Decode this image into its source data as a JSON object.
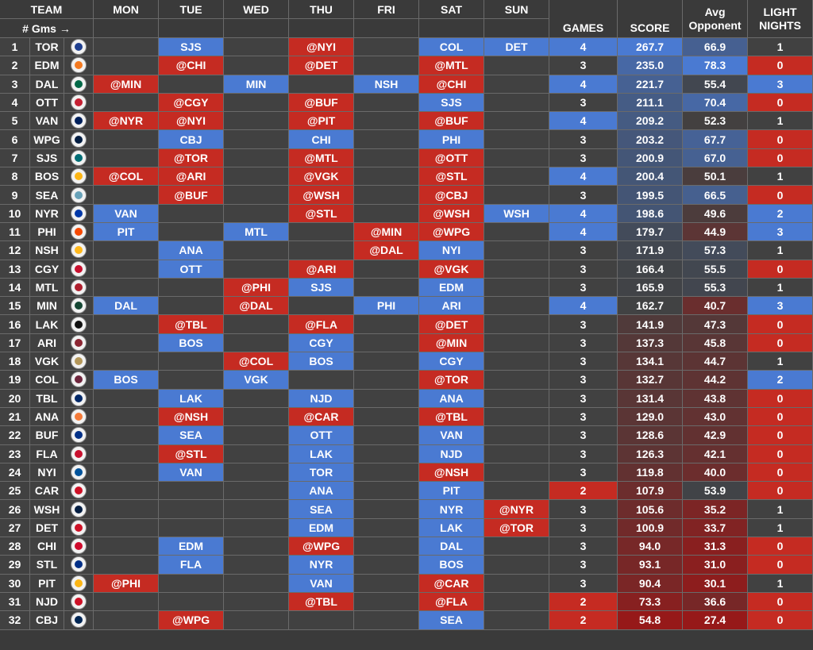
{
  "headers": {
    "team": "TEAM",
    "gms": "# Gms →",
    "days": [
      "MON",
      "TUE",
      "WED",
      "THU",
      "FRI",
      "SAT",
      "SUN"
    ],
    "games": "GAMES",
    "score": "SCORE",
    "avg_1": "Avg",
    "avg_2": "Opponent",
    "light_1": "LIGHT",
    "light_2": "NIGHTS"
  },
  "colors": {
    "blue": "#4a7ad2",
    "red": "#c52b22",
    "dark": "#414141"
  },
  "rows": [
    {
      "rank": "1",
      "team": "TOR",
      "days": [
        "",
        "SJS",
        "",
        "@NYI",
        "",
        "COL",
        "DET"
      ],
      "games": "4",
      "score": "267.7",
      "avg": "66.9",
      "light": "1"
    },
    {
      "rank": "2",
      "team": "EDM",
      "days": [
        "",
        "@CHI",
        "",
        "@DET",
        "",
        "@MTL",
        ""
      ],
      "games": "3",
      "score": "235.0",
      "avg": "78.3",
      "light": "0"
    },
    {
      "rank": "3",
      "team": "DAL",
      "days": [
        "@MIN",
        "",
        "MIN",
        "",
        "NSH",
        "@CHI",
        ""
      ],
      "games": "4",
      "score": "221.7",
      "avg": "55.4",
      "light": "3"
    },
    {
      "rank": "4",
      "team": "OTT",
      "days": [
        "",
        "@CGY",
        "",
        "@BUF",
        "",
        "SJS",
        ""
      ],
      "games": "3",
      "score": "211.1",
      "avg": "70.4",
      "light": "0"
    },
    {
      "rank": "5",
      "team": "VAN",
      "days": [
        "@NYR",
        "@NYI",
        "",
        "@PIT",
        "",
        "@BUF",
        ""
      ],
      "games": "4",
      "score": "209.2",
      "avg": "52.3",
      "light": "1"
    },
    {
      "rank": "6",
      "team": "WPG",
      "days": [
        "",
        "CBJ",
        "",
        "CHI",
        "",
        "PHI",
        ""
      ],
      "games": "3",
      "score": "203.2",
      "avg": "67.7",
      "light": "0"
    },
    {
      "rank": "7",
      "team": "SJS",
      "days": [
        "",
        "@TOR",
        "",
        "@MTL",
        "",
        "@OTT",
        ""
      ],
      "games": "3",
      "score": "200.9",
      "avg": "67.0",
      "light": "0"
    },
    {
      "rank": "8",
      "team": "BOS",
      "days": [
        "@COL",
        "@ARI",
        "",
        "@VGK",
        "",
        "@STL",
        ""
      ],
      "games": "4",
      "score": "200.4",
      "avg": "50.1",
      "light": "1"
    },
    {
      "rank": "9",
      "team": "SEA",
      "days": [
        "",
        "@BUF",
        "",
        "@WSH",
        "",
        "@CBJ",
        ""
      ],
      "games": "3",
      "score": "199.5",
      "avg": "66.5",
      "light": "0"
    },
    {
      "rank": "10",
      "team": "NYR",
      "days": [
        "VAN",
        "",
        "",
        "@STL",
        "",
        "@WSH",
        "WSH"
      ],
      "games": "4",
      "score": "198.6",
      "avg": "49.6",
      "light": "2"
    },
    {
      "rank": "11",
      "team": "PHI",
      "days": [
        "PIT",
        "",
        "MTL",
        "",
        "@MIN",
        "@WPG",
        ""
      ],
      "games": "4",
      "score": "179.7",
      "avg": "44.9",
      "light": "3"
    },
    {
      "rank": "12",
      "team": "NSH",
      "days": [
        "",
        "ANA",
        "",
        "",
        "@DAL",
        "NYI",
        ""
      ],
      "games": "3",
      "score": "171.9",
      "avg": "57.3",
      "light": "1"
    },
    {
      "rank": "13",
      "team": "CGY",
      "days": [
        "",
        "OTT",
        "",
        "@ARI",
        "",
        "@VGK",
        ""
      ],
      "games": "3",
      "score": "166.4",
      "avg": "55.5",
      "light": "0"
    },
    {
      "rank": "14",
      "team": "MTL",
      "days": [
        "",
        "",
        "@PHI",
        "SJS",
        "",
        "EDM",
        ""
      ],
      "games": "3",
      "score": "165.9",
      "avg": "55.3",
      "light": "1"
    },
    {
      "rank": "15",
      "team": "MIN",
      "days": [
        "DAL",
        "",
        "@DAL",
        "",
        "PHI",
        "ARI",
        ""
      ],
      "games": "4",
      "score": "162.7",
      "avg": "40.7",
      "light": "3"
    },
    {
      "rank": "16",
      "team": "LAK",
      "days": [
        "",
        "@TBL",
        "",
        "@FLA",
        "",
        "@DET",
        ""
      ],
      "games": "3",
      "score": "141.9",
      "avg": "47.3",
      "light": "0"
    },
    {
      "rank": "17",
      "team": "ARI",
      "days": [
        "",
        "BOS",
        "",
        "CGY",
        "",
        "@MIN",
        ""
      ],
      "games": "3",
      "score": "137.3",
      "avg": "45.8",
      "light": "0"
    },
    {
      "rank": "18",
      "team": "VGK",
      "days": [
        "",
        "",
        "@COL",
        "BOS",
        "",
        "CGY",
        ""
      ],
      "games": "3",
      "score": "134.1",
      "avg": "44.7",
      "light": "1"
    },
    {
      "rank": "19",
      "team": "COL",
      "days": [
        "BOS",
        "",
        "VGK",
        "",
        "",
        "@TOR",
        ""
      ],
      "games": "3",
      "score": "132.7",
      "avg": "44.2",
      "light": "2"
    },
    {
      "rank": "20",
      "team": "TBL",
      "days": [
        "",
        "LAK",
        "",
        "NJD",
        "",
        "ANA",
        ""
      ],
      "games": "3",
      "score": "131.4",
      "avg": "43.8",
      "light": "0"
    },
    {
      "rank": "21",
      "team": "ANA",
      "days": [
        "",
        "@NSH",
        "",
        "@CAR",
        "",
        "@TBL",
        ""
      ],
      "games": "3",
      "score": "129.0",
      "avg": "43.0",
      "light": "0"
    },
    {
      "rank": "22",
      "team": "BUF",
      "days": [
        "",
        "SEA",
        "",
        "OTT",
        "",
        "VAN",
        ""
      ],
      "games": "3",
      "score": "128.6",
      "avg": "42.9",
      "light": "0"
    },
    {
      "rank": "23",
      "team": "FLA",
      "days": [
        "",
        "@STL",
        "",
        "LAK",
        "",
        "NJD",
        ""
      ],
      "games": "3",
      "score": "126.3",
      "avg": "42.1",
      "light": "0"
    },
    {
      "rank": "24",
      "team": "NYI",
      "days": [
        "",
        "VAN",
        "",
        "TOR",
        "",
        "@NSH",
        ""
      ],
      "games": "3",
      "score": "119.8",
      "avg": "40.0",
      "light": "0"
    },
    {
      "rank": "25",
      "team": "CAR",
      "days": [
        "",
        "",
        "",
        "ANA",
        "",
        "PIT",
        ""
      ],
      "games": "2",
      "score": "107.9",
      "avg": "53.9",
      "light": "0"
    },
    {
      "rank": "26",
      "team": "WSH",
      "days": [
        "",
        "",
        "",
        "SEA",
        "",
        "NYR",
        "@NYR"
      ],
      "games": "3",
      "score": "105.6",
      "avg": "35.2",
      "light": "1"
    },
    {
      "rank": "27",
      "team": "DET",
      "days": [
        "",
        "",
        "",
        "EDM",
        "",
        "LAK",
        "@TOR"
      ],
      "games": "3",
      "score": "100.9",
      "avg": "33.7",
      "light": "1"
    },
    {
      "rank": "28",
      "team": "CHI",
      "days": [
        "",
        "EDM",
        "",
        "@WPG",
        "",
        "DAL",
        ""
      ],
      "games": "3",
      "score": "94.0",
      "avg": "31.3",
      "light": "0"
    },
    {
      "rank": "29",
      "team": "STL",
      "days": [
        "",
        "FLA",
        "",
        "NYR",
        "",
        "BOS",
        ""
      ],
      "games": "3",
      "score": "93.1",
      "avg": "31.0",
      "light": "0"
    },
    {
      "rank": "30",
      "team": "PIT",
      "days": [
        "@PHI",
        "",
        "",
        "VAN",
        "",
        "@CAR",
        ""
      ],
      "games": "3",
      "score": "90.4",
      "avg": "30.1",
      "light": "1"
    },
    {
      "rank": "31",
      "team": "NJD",
      "days": [
        "",
        "",
        "",
        "@TBL",
        "",
        "@FLA",
        ""
      ],
      "games": "2",
      "score": "73.3",
      "avg": "36.6",
      "light": "0"
    },
    {
      "rank": "32",
      "team": "CBJ",
      "days": [
        "",
        "@WPG",
        "",
        "",
        "",
        "SEA",
        ""
      ],
      "games": "2",
      "score": "54.8",
      "avg": "27.4",
      "light": "0"
    }
  ],
  "logo_colors": {
    "TOR": "#1f3f8f",
    "EDM": "#f47a20",
    "DAL": "#006847",
    "OTT": "#c52032",
    "VAN": "#00205b",
    "WPG": "#041e42",
    "SJS": "#006d75",
    "BOS": "#fcb514",
    "SEA": "#68a2b9",
    "NYR": "#0038a8",
    "PHI": "#f74902",
    "NSH": "#ffb81c",
    "CGY": "#c8102e",
    "MTL": "#af1e2d",
    "MIN": "#154734",
    "LAK": "#111111",
    "ARI": "#8c2633",
    "VGK": "#b4975a",
    "COL": "#6f263d",
    "TBL": "#002868",
    "ANA": "#f47a38",
    "BUF": "#003087",
    "FLA": "#c8102e",
    "NYI": "#00539b",
    "CAR": "#ce1126",
    "WSH": "#041e42",
    "DET": "#ce1126",
    "CHI": "#cf0a2c",
    "STL": "#002f87",
    "PIT": "#fcb514",
    "NJD": "#ce1126",
    "CBJ": "#002654"
  }
}
